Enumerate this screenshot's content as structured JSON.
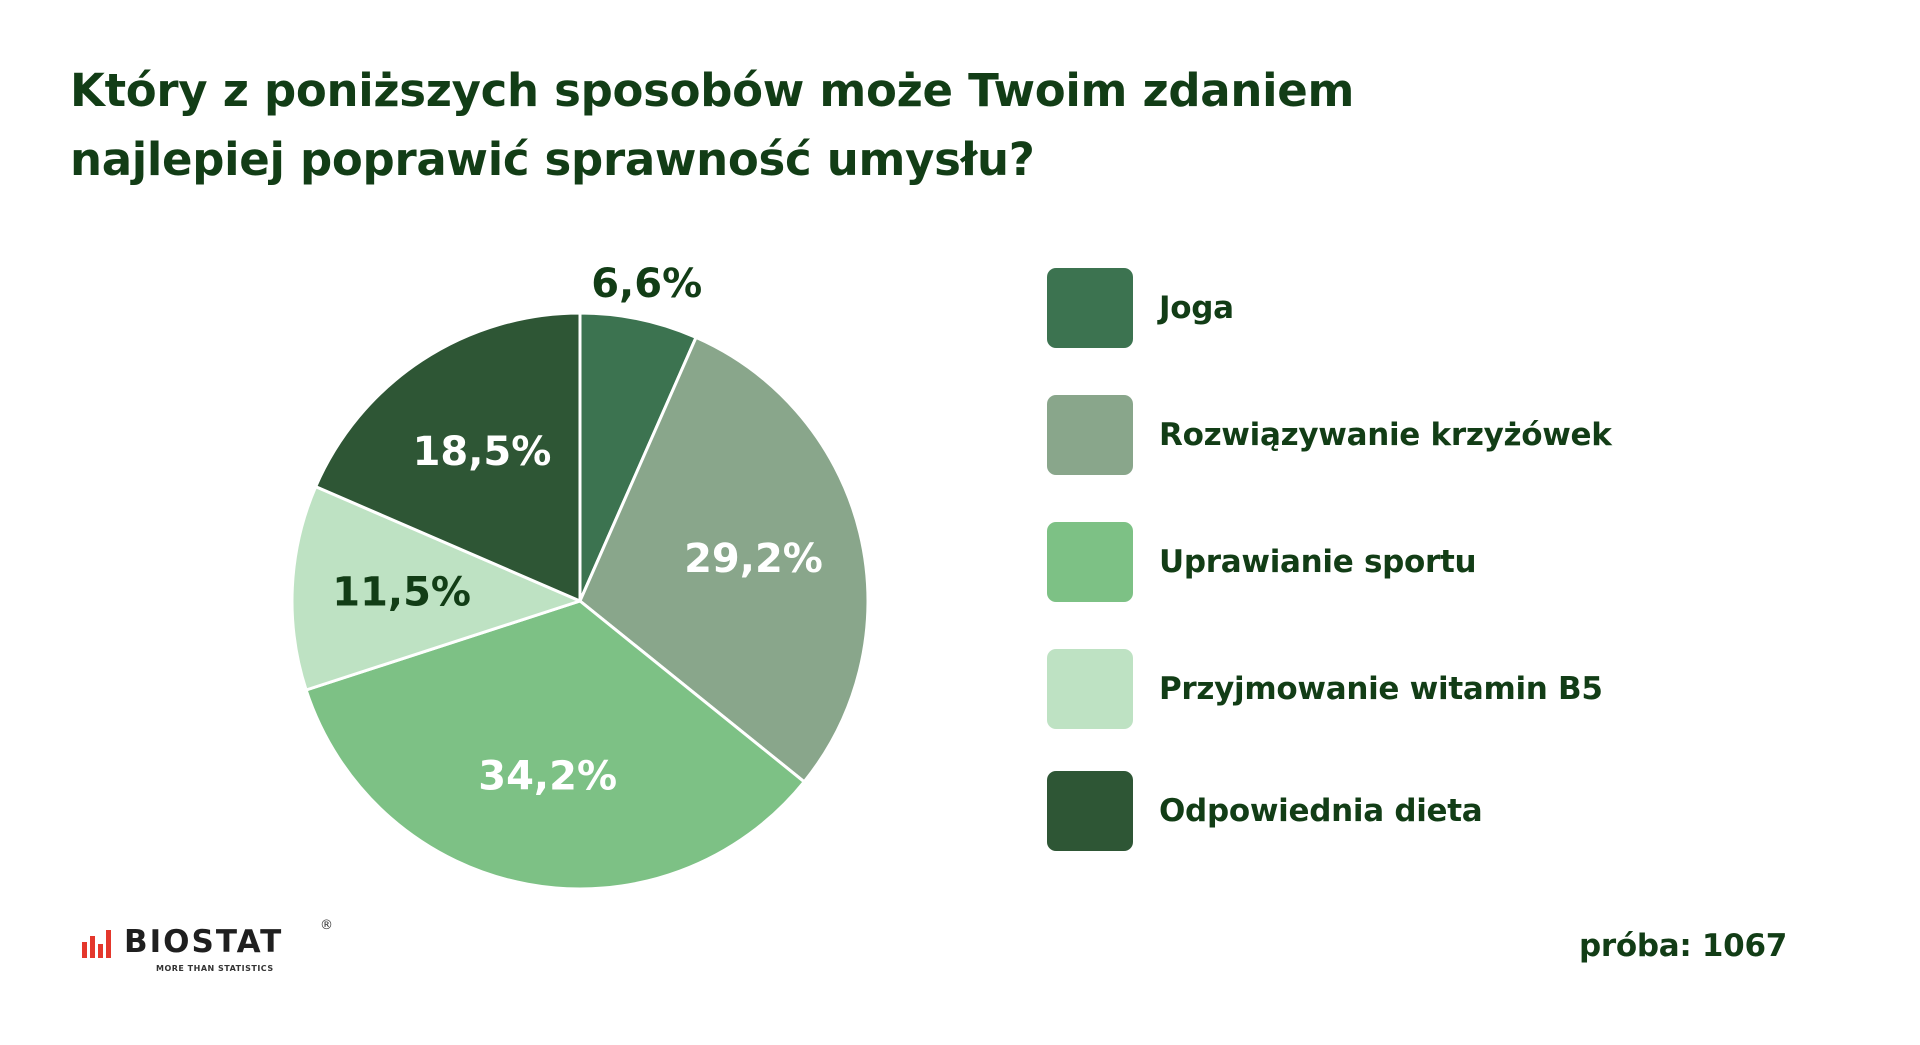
{
  "chart_data": {
    "type": "pie",
    "title": "Który z poniższych sposobów może Twoim zdaniem najlepiej poprawić sprawność umysłu?",
    "start_angle_deg": 0,
    "direction": "clockwise",
    "legend_position": "right",
    "slices": [
      {
        "name": "Joga",
        "value": 6.6,
        "label": "6,6%",
        "color": "#3c7350",
        "label_color": "#123d16",
        "label_placement": "outside"
      },
      {
        "name": "Rozwiązywanie krzyżówek",
        "value": 29.2,
        "label": "29,2%",
        "color": "#89a68b",
        "label_color": "#ffffff",
        "label_placement": "inside"
      },
      {
        "name": "Uprawianie sportu",
        "value": 34.2,
        "label": "34,2%",
        "color": "#7dc185",
        "label_color": "#ffffff",
        "label_placement": "inside"
      },
      {
        "name": "Przyjmowanie witamin B5",
        "value": 11.5,
        "label": "11,5%",
        "color": "#bee2c3",
        "label_color": "#123d16",
        "label_placement": "inside"
      },
      {
        "name": "Odpowiednia dieta",
        "value": 18.5,
        "label": "18,5%",
        "color": "#2e5635",
        "label_color": "#ffffff",
        "label_placement": "inside"
      }
    ]
  },
  "sample_text": "próba: 1067",
  "logo": {
    "text": "BIOSTAT",
    "registered_mark": "®",
    "tagline": "MORE THAN STATISTICS",
    "icon": "bar-chart-icon",
    "bar_color": "#e4372c"
  },
  "colors": {
    "title": "#123d16",
    "background": "#ffffff",
    "slice_border": "#ffffff"
  }
}
